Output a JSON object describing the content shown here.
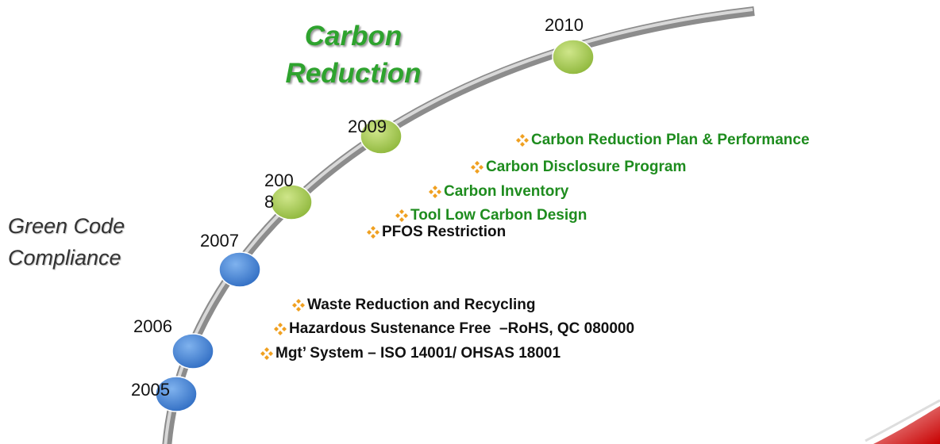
{
  "headings": {
    "carbon": "Carbon Reduction",
    "compliance": "Green Code Compliance"
  },
  "years": [
    "2005",
    "2006",
    "2007",
    "2008",
    "2009",
    "2010"
  ],
  "carbon_items": [
    "Carbon Reduction Plan & Performance",
    "Carbon Disclosure Program",
    "Carbon Inventory",
    "Tool Low Carbon Design"
  ],
  "compliance_items": [
    "PFOS Restriction",
    "Waste Reduction and Recycling",
    "Hazardous Sustenance Free  –RoHS, QC 080000",
    "Mgt’ System – ISO 14001/ OHSAS 18001"
  ]
}
